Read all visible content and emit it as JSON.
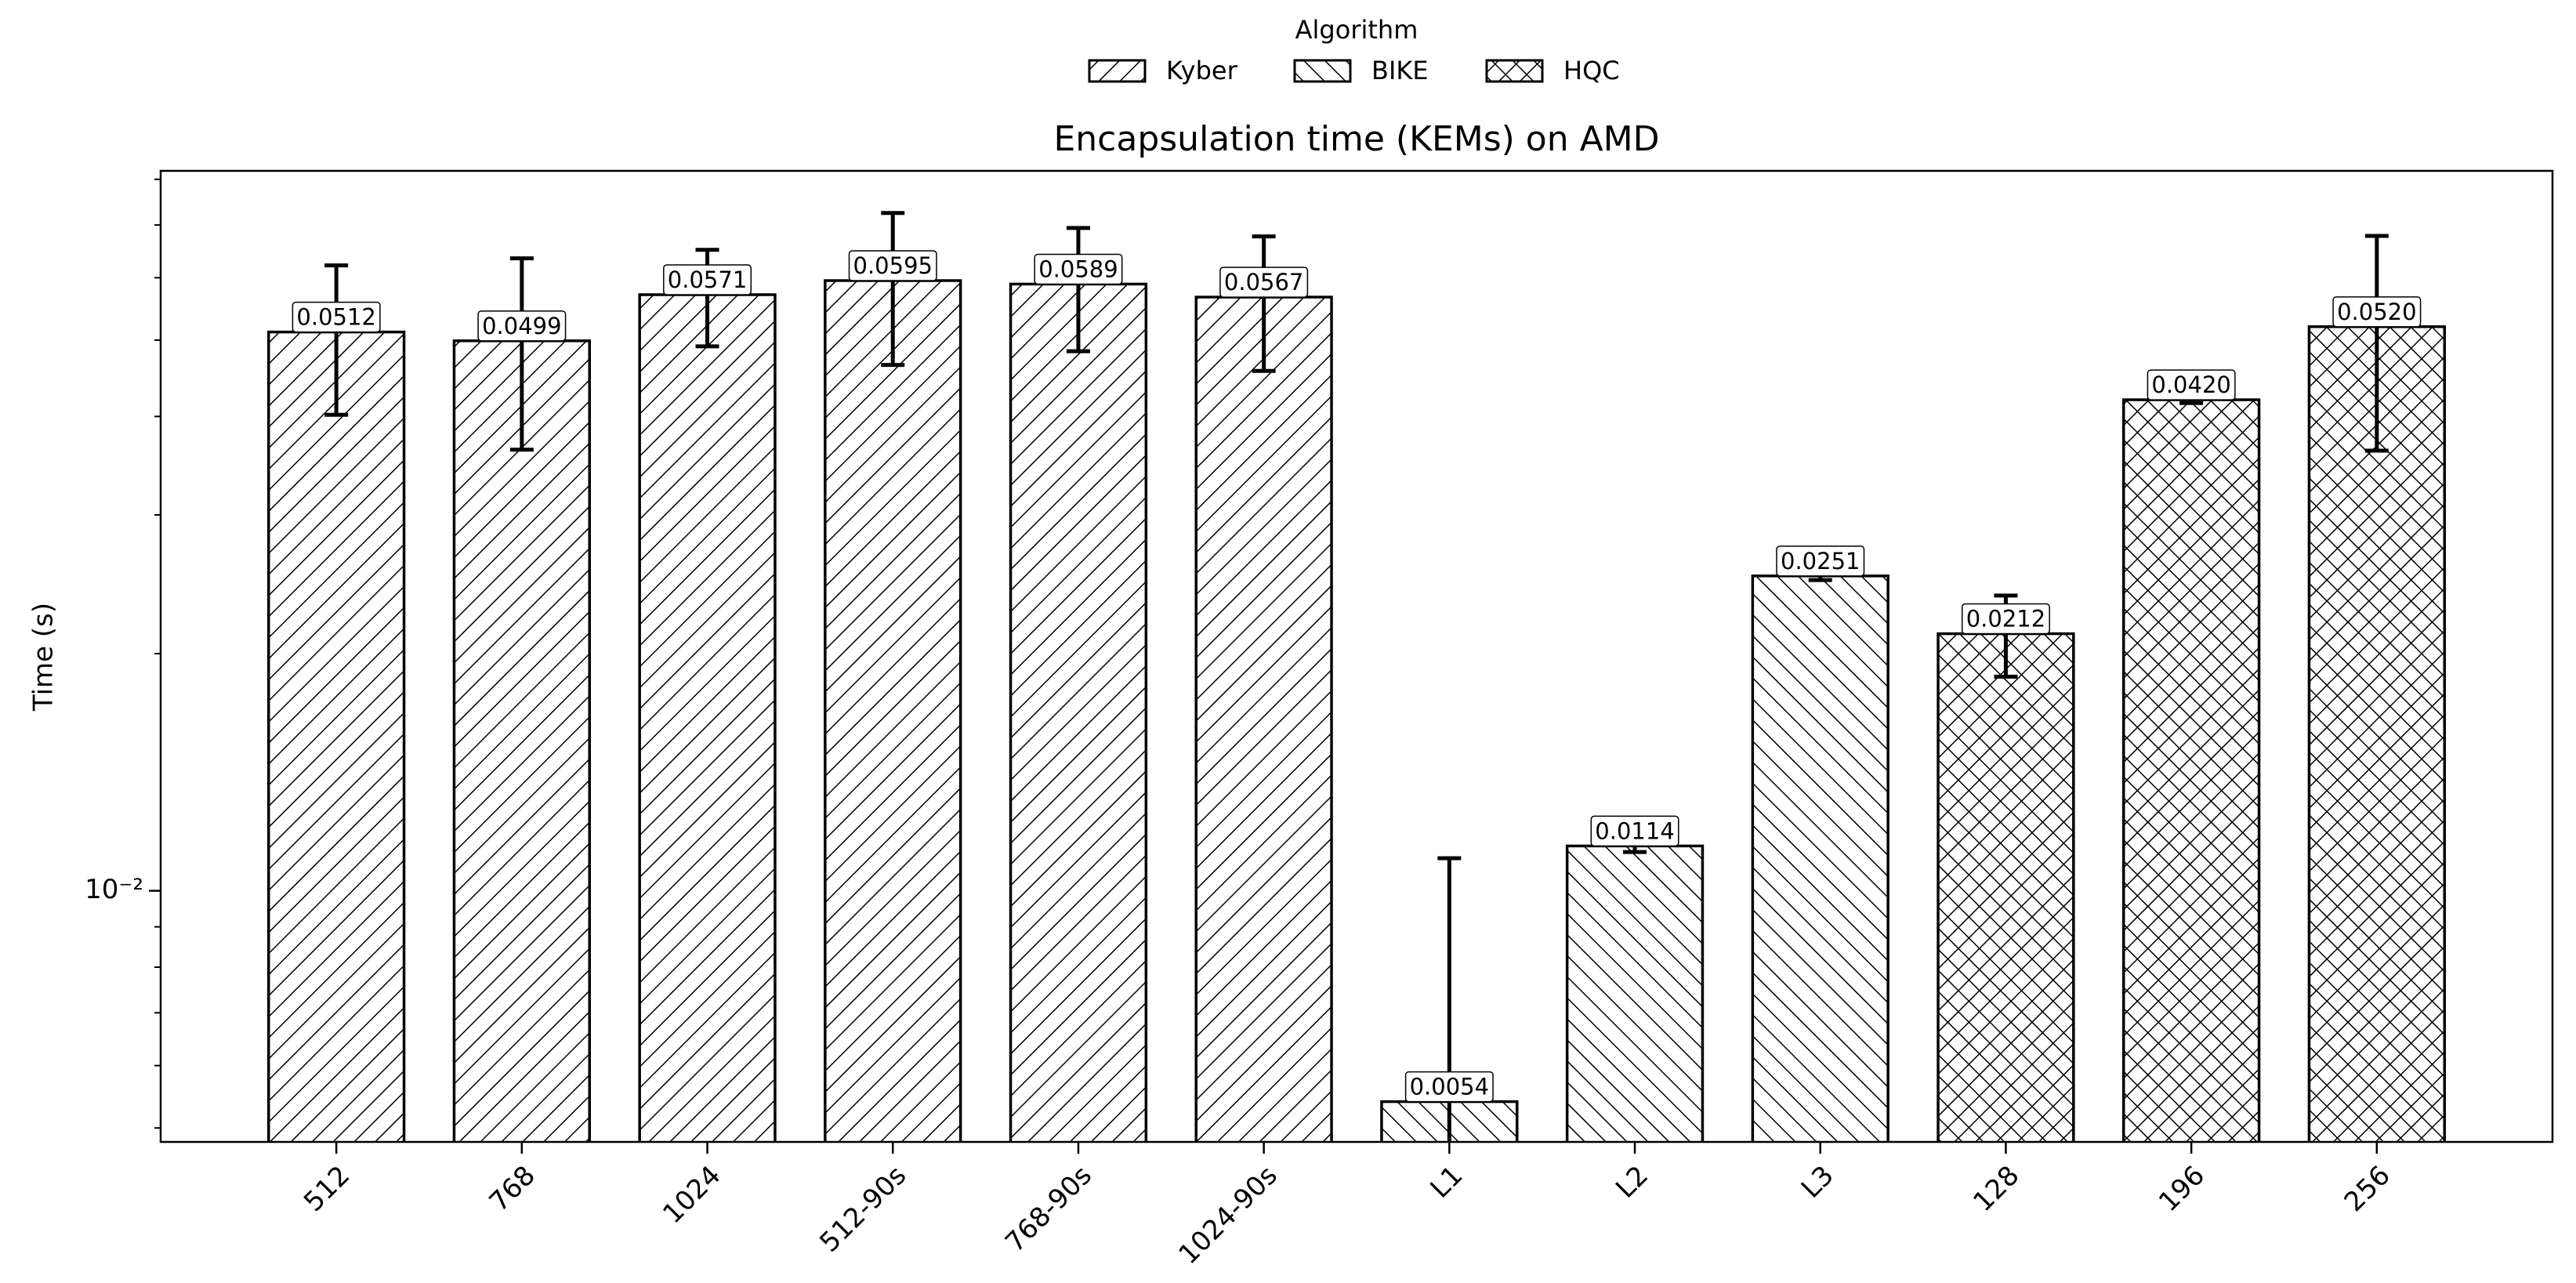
{
  "chart_data": {
    "type": "bar",
    "title": "Encapsulation time (KEMs) on AMD",
    "y_label": "Time (s)",
    "legend_title": "Algorithm",
    "legend_position": "top",
    "log_y": true,
    "ylim": [
      0.0048,
      0.082
    ],
    "yticks": [
      {
        "value": 0.01,
        "label": "10⁻²"
      }
    ],
    "yminorticks": [
      0.005,
      0.006,
      0.007,
      0.008,
      0.009,
      0.02,
      0.03,
      0.04,
      0.05,
      0.06,
      0.07,
      0.08
    ],
    "categories": [
      "512",
      "768",
      "1024",
      "512-90s",
      "768-90s",
      "1024-90s",
      "L1",
      "L2",
      "L3",
      "128",
      "196",
      "256"
    ],
    "series": [
      {
        "name": "Kyber",
        "color": "#ffffff",
        "hatch": "//",
        "values": [
          0.0512,
          0.0499,
          0.0571,
          0.0595,
          0.0589,
          0.0567,
          null,
          null,
          null,
          null,
          null,
          null
        ],
        "value_labels": [
          "0.0512",
          "0.0499",
          "0.0571",
          "0.0595",
          "0.0589",
          "0.0567",
          null,
          null,
          null,
          null,
          null,
          null
        ],
        "errors": [
          0.011,
          0.0136,
          0.008,
          0.013,
          0.0105,
          0.011,
          null,
          null,
          null,
          null,
          null,
          null
        ]
      },
      {
        "name": "BIKE",
        "color": "#ffffff",
        "hatch": "\\\\",
        "values": [
          null,
          null,
          null,
          null,
          null,
          null,
          0.0054,
          0.0114,
          0.0251,
          null,
          null,
          null
        ],
        "value_labels": [
          null,
          null,
          null,
          null,
          null,
          null,
          "0.0054",
          "0.0114",
          "0.0251",
          null,
          null,
          null
        ],
        "errors": [
          null,
          null,
          null,
          null,
          null,
          null,
          0.0056,
          0.0002,
          0.0003,
          null,
          null,
          null
        ]
      },
      {
        "name": "HQC",
        "color": "#ffffff",
        "hatch": "xx",
        "values": [
          null,
          null,
          null,
          null,
          null,
          null,
          null,
          null,
          null,
          0.0212,
          0.042,
          0.052
        ],
        "value_labels": [
          null,
          null,
          null,
          null,
          null,
          null,
          null,
          null,
          null,
          "0.0212",
          "0.0420",
          "0.0520"
        ],
        "errors": [
          null,
          null,
          null,
          null,
          null,
          null,
          null,
          null,
          null,
          0.0025,
          0.0004,
          0.0158
        ]
      }
    ]
  }
}
